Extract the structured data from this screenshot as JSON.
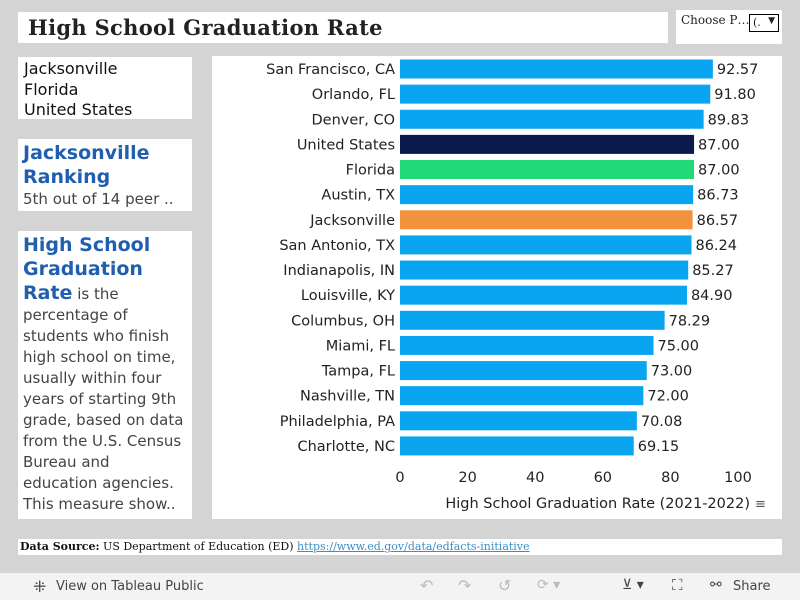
{
  "title": "High School Graduation Rate",
  "parameter": {
    "label": "Choose P…",
    "value": "(."
  },
  "location": [
    "Jacksonville",
    "Florida",
    "United States"
  ],
  "ranking": {
    "heading": "Jacksonville Ranking",
    "text": "5th out of 14 peer .."
  },
  "description": {
    "heading": "High School Graduation Rate",
    "text": " is the percentage of students who finish high school on time, usually within four years of starting 9th grade, based on data from the U.S. Census Bureau and education agencies. This measure show.."
  },
  "source": {
    "label": "Data Source:",
    "text": "US Department of Education (ED)",
    "link": "https://www.ed.gov/data/edfacts-initiative"
  },
  "toolbar": {
    "view": "View on Tableau Public",
    "share": "Share"
  },
  "colors": {
    "peer": "#0aa5f0",
    "us": "#0b1a4d",
    "state": "#22d977",
    "city": "#f2923c"
  },
  "chart_data": {
    "type": "bar",
    "orientation": "horizontal",
    "xlabel": "High School Graduation Rate (2021-2022)",
    "xlim": [
      0,
      100
    ],
    "xticks": [
      0,
      20,
      40,
      60,
      80,
      100
    ],
    "categories": [
      "San Francisco, CA",
      "Orlando, FL",
      "Denver, CO",
      "United States",
      "Florida",
      "Austin, TX",
      "Jacksonville",
      "San Antonio, TX",
      "Indianapolis, IN",
      "Louisville, KY",
      "Columbus, OH",
      "Miami, FL",
      "Tampa, FL",
      "Nashville, TN",
      "Philadelphia, PA",
      "Charlotte, NC"
    ],
    "values": [
      92.57,
      91.8,
      89.83,
      87.0,
      87.0,
      86.73,
      86.57,
      86.24,
      85.27,
      84.9,
      78.29,
      75.0,
      73.0,
      72.0,
      70.08,
      69.15
    ],
    "labels": [
      "92.57",
      "91.80",
      "89.83",
      "87.00",
      "87.00",
      "86.73",
      "86.57",
      "86.24",
      "85.27",
      "84.90",
      "78.29",
      "75.00",
      "73.00",
      "72.00",
      "70.08",
      "69.15"
    ],
    "highlight": {
      "United States": "us",
      "Florida": "state",
      "Jacksonville": "city"
    }
  }
}
